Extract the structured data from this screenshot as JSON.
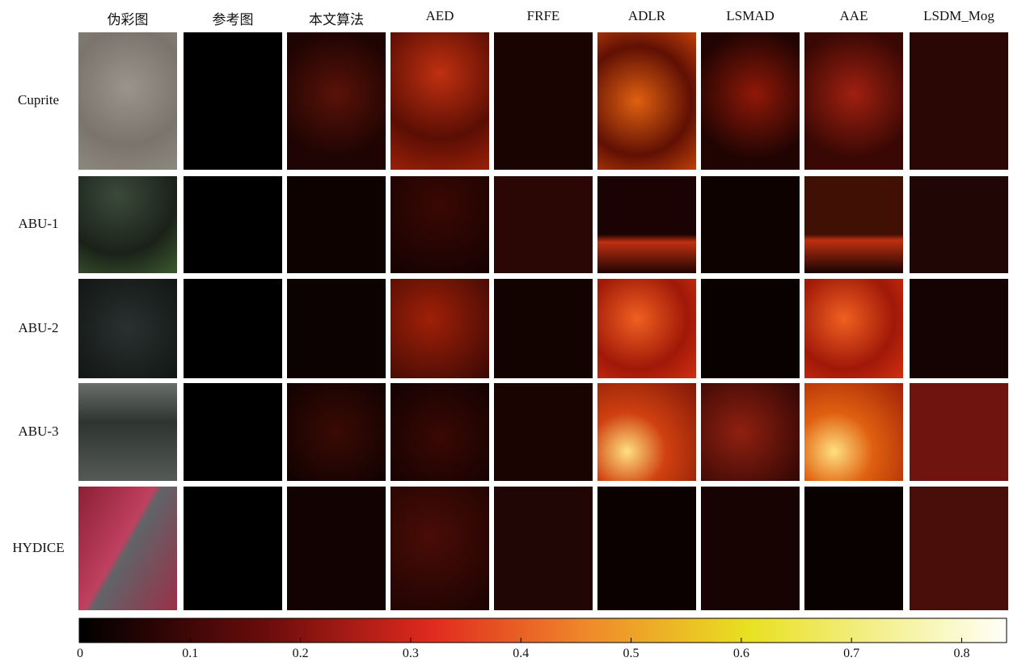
{
  "columns": [
    "伪彩图",
    "参考图",
    "本文算法",
    "AED",
    "FRFE",
    "ADLR",
    "LSMAD",
    "AAE",
    "LSDM_Mog"
  ],
  "rows": [
    "Cuprite",
    "ABU-1",
    "ABU-2",
    "ABU-3",
    "HYDICE"
  ],
  "colorbar": {
    "lim": [
      0,
      0.84
    ],
    "ticks": [
      0,
      0.1,
      0.2,
      0.3,
      0.4,
      0.5,
      0.6,
      0.7,
      0.8
    ]
  }
}
